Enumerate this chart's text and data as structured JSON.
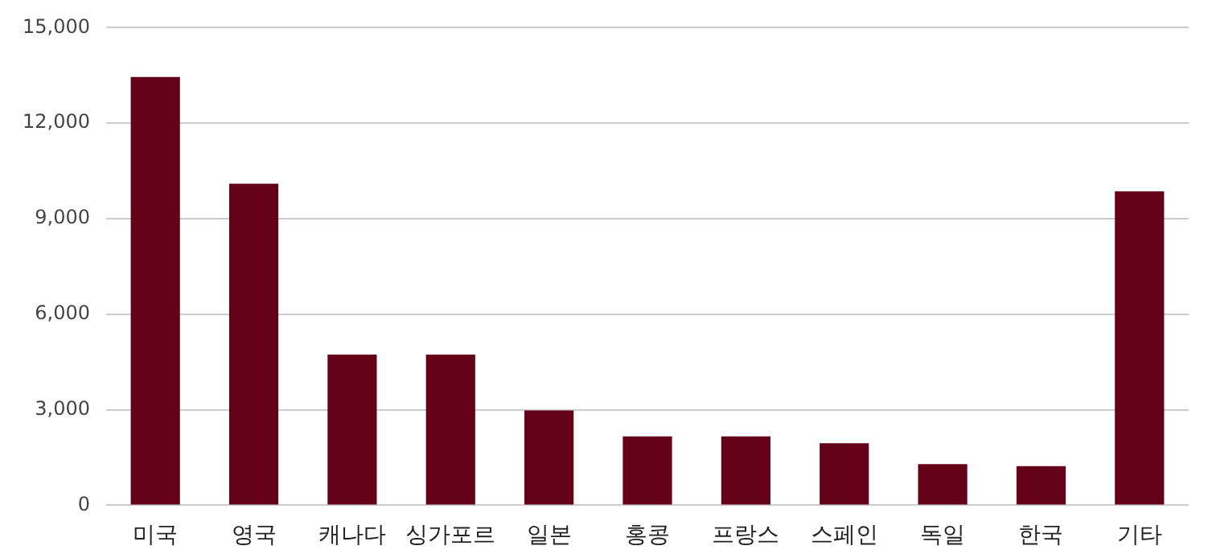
{
  "chart_data": {
    "type": "bar",
    "categories": [
      "미국",
      "영국",
      "캐나다",
      "싱가포르",
      "일본",
      "홍콩",
      "프랑스",
      "스페인",
      "독일",
      "한국",
      "기타"
    ],
    "values": [
      13450,
      10100,
      4730,
      4730,
      2980,
      2160,
      2160,
      1950,
      1290,
      1230,
      9860
    ],
    "color": "#650019",
    "ylim": [
      0,
      15000
    ],
    "yticks": [
      {
        "value": 0,
        "label": "0"
      },
      {
        "value": 3000,
        "label": "3,000"
      },
      {
        "value": 6000,
        "label": "6,000"
      },
      {
        "value": 9000,
        "label": "9,000"
      },
      {
        "value": 12000,
        "label": "12,000"
      },
      {
        "value": 15000,
        "label": "15,000"
      }
    ],
    "grid": "y",
    "legend": false
  }
}
